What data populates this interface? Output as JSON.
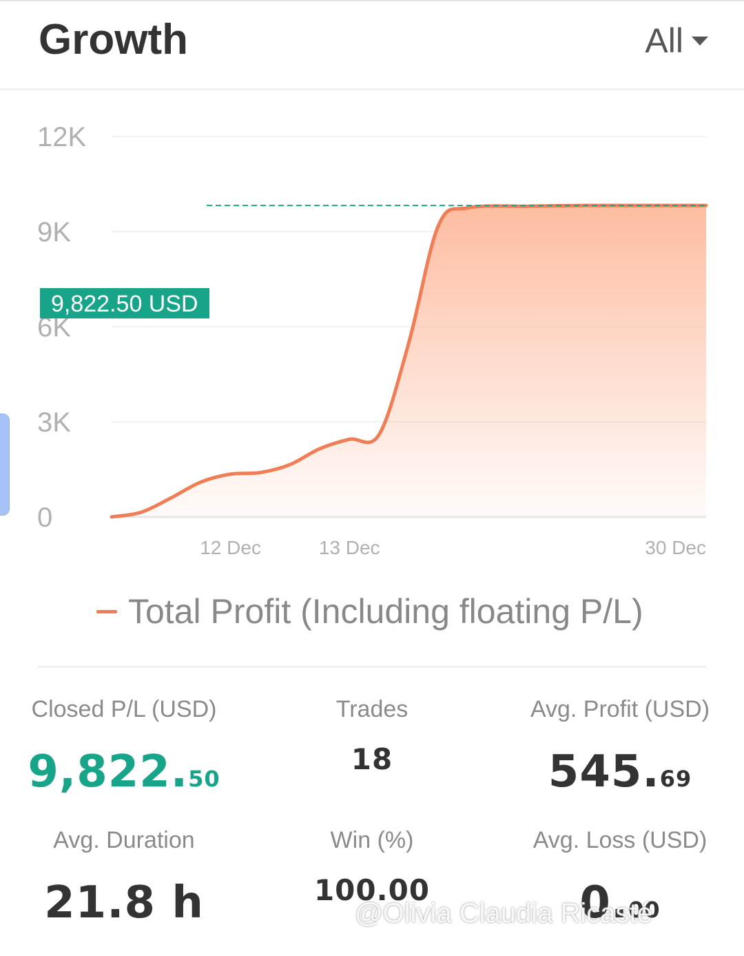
{
  "header": {
    "title": "Growth",
    "filter_label": "All"
  },
  "chart_data": {
    "type": "area",
    "y_ticks": [
      "12K",
      "9K",
      "6K",
      "3K",
      "0"
    ],
    "ylim": [
      0,
      12000
    ],
    "x_tick_labels": [
      "12 Dec",
      "13 Dec",
      "30 Dec"
    ],
    "series": [
      {
        "name": "Total Profit (Including floating P/L)",
        "color": "#ef7d55",
        "points": [
          [
            0,
            0
          ],
          [
            5,
            150
          ],
          [
            10,
            600
          ],
          [
            15,
            1100
          ],
          [
            20,
            1350
          ],
          [
            25,
            1400
          ],
          [
            30,
            1650
          ],
          [
            35,
            2150
          ],
          [
            40,
            2450
          ],
          [
            45,
            2600
          ],
          [
            50,
            5500
          ],
          [
            55,
            9200
          ],
          [
            60,
            9750
          ],
          [
            70,
            9800
          ],
          [
            80,
            9822.5
          ],
          [
            100,
            9822.5
          ]
        ]
      }
    ],
    "marker": {
      "label": "9,822.50 USD",
      "value": 9822.5,
      "color": "#17a489"
    },
    "grid": true
  },
  "legend": {
    "label": "Total Profit (Including floating P/L)"
  },
  "stats": {
    "closed_pl": {
      "label": "Closed P/L (USD)",
      "int": "9,822.",
      "dec": "50"
    },
    "trades": {
      "label": "Trades",
      "value": "18"
    },
    "avg_profit": {
      "label": "Avg. Profit (USD)",
      "int": "545.",
      "dec": "69"
    },
    "avg_duration": {
      "label": "Avg. Duration",
      "value": "21.8 h"
    },
    "win_rate": {
      "label": "Win (%)",
      "value": "100.00"
    },
    "avg_loss": {
      "label": "Avg. Loss (USD)",
      "int": "0.",
      "dec": "00"
    }
  },
  "watermark": {
    "text": "@Olivia Claudia Ricasté"
  }
}
